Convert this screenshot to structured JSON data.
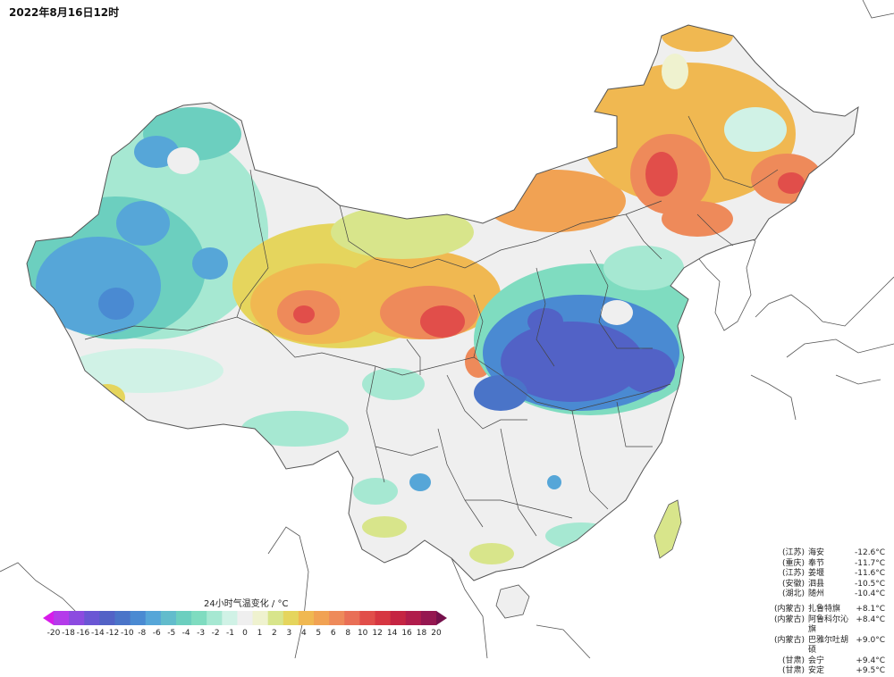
{
  "timestamp": "2022年8月16日12时",
  "legend": {
    "title": "24小时气温变化 / °C",
    "ticks": [
      "-20",
      "-18",
      "-16",
      "-14",
      "-12",
      "-10",
      "-8",
      "-6",
      "-5",
      "-4",
      "-3",
      "-2",
      "-1",
      "0",
      "1",
      "2",
      "3",
      "4",
      "5",
      "6",
      "8",
      "10",
      "12",
      "14",
      "16",
      "18",
      "20"
    ],
    "colors": [
      "#d81bea",
      "#b43bea",
      "#8c4be0",
      "#6a56d4",
      "#5262c6",
      "#4a74c8",
      "#4a8ad2",
      "#56a6d8",
      "#62bccc",
      "#6ccfbf",
      "#7fdcc0",
      "#a6e8d2",
      "#d0f2e6",
      "#efefef",
      "#eff2cf",
      "#d8e58b",
      "#e5d55d",
      "#f0b851",
      "#f1a253",
      "#ee8a5a",
      "#e96f56",
      "#e14e4a",
      "#d63641",
      "#c52442",
      "#b01c4b",
      "#951750",
      "#75104b"
    ]
  },
  "extremes": {
    "cold": [
      {
        "region": "(江苏)",
        "place": "海安",
        "value": "-12.6°C"
      },
      {
        "region": "(重庆)",
        "place": "奉节",
        "value": "-11.7°C"
      },
      {
        "region": "(江苏)",
        "place": "姜堰",
        "value": "-11.6°C"
      },
      {
        "region": "(安徽)",
        "place": "泗县",
        "value": "-10.5°C"
      },
      {
        "region": "(湖北)",
        "place": "随州",
        "value": "-10.4°C"
      }
    ],
    "warm": [
      {
        "region": "(内蒙古)",
        "place": "扎鲁特旗",
        "value": "+8.1°C"
      },
      {
        "region": "(内蒙古)",
        "place": "阿鲁科尔沁旗",
        "value": "+8.4°C"
      },
      {
        "region": "(内蒙古)",
        "place": "巴雅尔吐胡硕",
        "value": "+9.0°C"
      },
      {
        "region": "(甘肃)",
        "place": "会宁",
        "value": "+9.4°C"
      },
      {
        "region": "(甘肃)",
        "place": "安定",
        "value": "+9.5°C"
      }
    ]
  }
}
